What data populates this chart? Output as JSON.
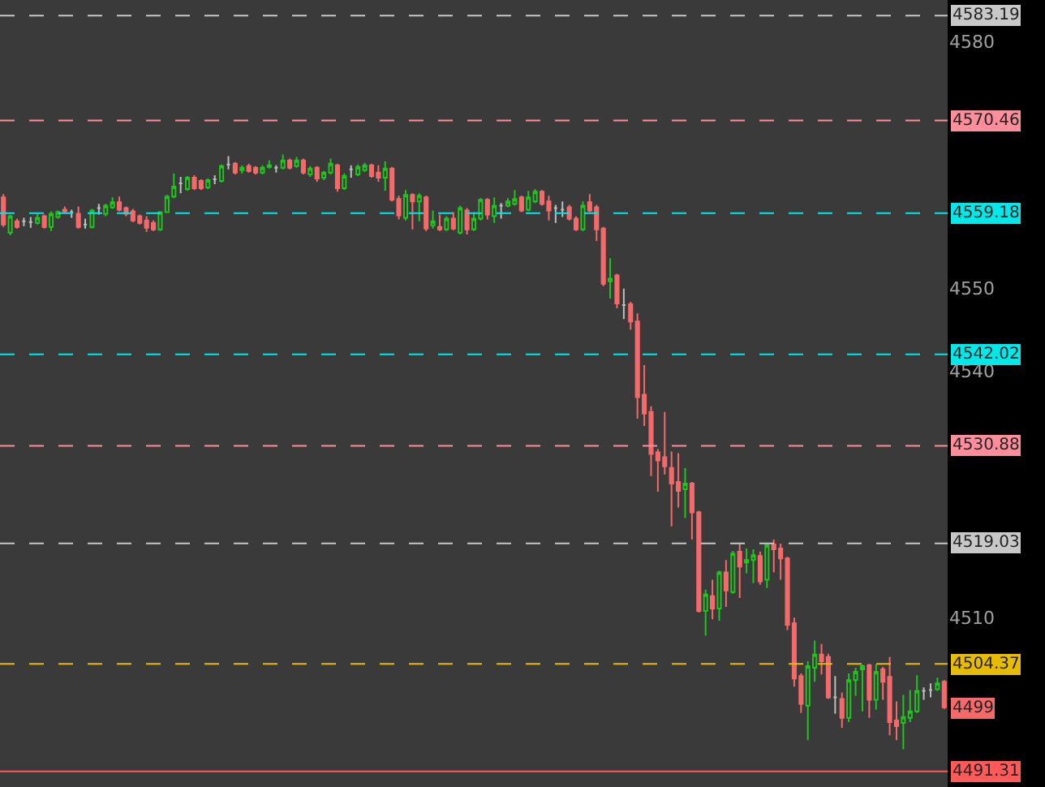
{
  "chart_data": {
    "type": "candlestick",
    "categories": [
      null,
      null,
      null,
      null,
      null,
      null,
      null,
      null,
      null,
      null,
      null,
      null,
      null,
      null,
      null,
      null,
      null,
      null,
      null,
      null,
      null,
      null,
      null,
      null,
      null,
      null,
      null,
      null,
      null,
      null,
      null,
      null,
      null,
      null,
      null,
      null,
      null,
      null,
      null,
      null,
      null,
      null,
      null,
      null,
      null,
      null,
      null,
      null,
      null,
      null,
      null,
      null,
      null,
      null,
      null,
      null,
      null,
      null,
      null,
      null,
      null,
      null,
      null,
      null,
      null,
      null,
      null,
      null,
      null,
      null,
      null,
      null,
      null,
      null,
      null,
      null,
      null,
      null,
      null,
      null,
      null,
      null,
      null,
      null,
      null,
      null,
      null,
      null,
      null,
      null,
      null,
      null,
      null,
      null,
      null,
      null,
      null,
      null,
      null,
      null,
      null,
      null,
      null,
      null,
      null,
      null,
      null,
      null,
      null,
      null,
      null,
      null,
      null,
      null,
      null,
      null,
      null,
      null,
      null,
      null,
      null,
      null,
      null,
      null,
      null,
      null,
      null,
      null,
      null,
      null,
      null,
      null,
      null,
      null,
      null,
      null,
      null,
      null,
      null
    ],
    "ohlc": [
      [
        4561.1,
        4561.5,
        4557.5,
        4557.8
      ],
      [
        4556.8,
        4559.0,
        4556.5,
        4558.8
      ],
      [
        4558.2,
        4558.5,
        4557.3,
        4557.5
      ],
      [
        4558.2,
        4558.6,
        4557.6,
        4558.2
      ],
      [
        4558.1,
        4558.7,
        4557.4,
        4558.1
      ],
      [
        4558.0,
        4559.2,
        4557.8,
        4558.6
      ],
      [
        4558.8,
        4559.0,
        4557.3,
        4557.5
      ],
      [
        4557.5,
        4559.4,
        4557.0,
        4559.1
      ],
      [
        4558.7,
        4559.5,
        4558.5,
        4559.3
      ],
      [
        4559.6,
        4560.0,
        4559.2,
        4559.4
      ],
      [
        4559.3,
        4559.6,
        4558.6,
        4559.3
      ],
      [
        4559.1,
        4560.0,
        4557.3,
        4557.5
      ],
      [
        4557.8,
        4558.5,
        4557.3,
        4557.8
      ],
      [
        4557.5,
        4559.7,
        4557.3,
        4559.5
      ],
      [
        4559.8,
        4560.3,
        4559.0,
        4559.8
      ],
      [
        4559.1,
        4560.3,
        4558.8,
        4560.1
      ],
      [
        4559.9,
        4561.1,
        4559.7,
        4560.5
      ],
      [
        4560.5,
        4561.2,
        4559.4,
        4559.6
      ],
      [
        4559.8,
        4560.0,
        4558.8,
        4559.1
      ],
      [
        4559.4,
        4559.7,
        4558.1,
        4558.3
      ],
      [
        4558.8,
        4559.0,
        4557.8,
        4558.0
      ],
      [
        4558.3,
        4558.8,
        4556.9,
        4557.4
      ],
      [
        4558.0,
        4558.3,
        4557.0,
        4557.2
      ],
      [
        4557.2,
        4559.4,
        4557.0,
        4559.3
      ],
      [
        4559.3,
        4561.4,
        4559.2,
        4561.2
      ],
      [
        4561.2,
        4564.0,
        4561.0,
        4562.4
      ],
      [
        4562.8,
        4563.6,
        4561.6,
        4562.8
      ],
      [
        4562.1,
        4563.7,
        4561.9,
        4563.5
      ],
      [
        4563.5,
        4563.8,
        4562.0,
        4562.2
      ],
      [
        4563.1,
        4563.3,
        4562.0,
        4562.2
      ],
      [
        4562.3,
        4563.4,
        4562.1,
        4563.2
      ],
      [
        4563.3,
        4563.8,
        4562.7,
        4563.3
      ],
      [
        4563.1,
        4565.1,
        4562.9,
        4564.9
      ],
      [
        4565.1,
        4566.1,
        4564.5,
        4565.1
      ],
      [
        4565.2,
        4565.4,
        4563.9,
        4564.1
      ],
      [
        4564.4,
        4565.0,
        4564.0,
        4564.7
      ],
      [
        4564.9,
        4565.2,
        4564.1,
        4564.3
      ],
      [
        4564.7,
        4564.9,
        4563.9,
        4564.1
      ],
      [
        4564.1,
        4565.0,
        4563.9,
        4564.7
      ],
      [
        4564.8,
        4565.6,
        4564.6,
        4565.0
      ],
      [
        4564.7,
        4565.0,
        4564.1,
        4564.7
      ],
      [
        4564.7,
        4566.3,
        4564.5,
        4565.6
      ],
      [
        4565.6,
        4565.8,
        4564.5,
        4564.7
      ],
      [
        4564.9,
        4566.0,
        4564.7,
        4565.6
      ],
      [
        4565.6,
        4565.8,
        4563.9,
        4564.1
      ],
      [
        4563.9,
        4564.9,
        4563.6,
        4564.6
      ],
      [
        4564.7,
        4564.9,
        4563.0,
        4563.4
      ],
      [
        4563.5,
        4564.3,
        4563.2,
        4564.1
      ],
      [
        4564.1,
        4565.8,
        4563.9,
        4565.2
      ],
      [
        4565.0,
        4565.2,
        4561.8,
        4562.2
      ],
      [
        4562.2,
        4564.0,
        4562.0,
        4563.7
      ],
      [
        4564.5,
        4565.0,
        4563.5,
        4564.5
      ],
      [
        4563.9,
        4565.1,
        4563.7,
        4564.8
      ],
      [
        4564.4,
        4565.3,
        4564.2,
        4565.0
      ],
      [
        4565.0,
        4565.2,
        4563.5,
        4563.7
      ],
      [
        4564.1,
        4565.0,
        4563.0,
        4563.5
      ],
      [
        4563.5,
        4565.5,
        4561.9,
        4564.6
      ],
      [
        4564.6,
        4564.8,
        4560.6,
        4560.8
      ],
      [
        4560.9,
        4561.3,
        4558.4,
        4558.9
      ],
      [
        4558.6,
        4562.0,
        4558.3,
        4561.4
      ],
      [
        4561.4,
        4561.6,
        4557.2,
        4560.6
      ],
      [
        4560.6,
        4561.6,
        4558.2,
        4561.3
      ],
      [
        4561.1,
        4561.3,
        4557.0,
        4557.3
      ],
      [
        4557.7,
        4559.5,
        4557.3,
        4558.2
      ],
      [
        4557.5,
        4559.0,
        4557.0,
        4557.2
      ],
      [
        4557.2,
        4558.8,
        4557.0,
        4558.5
      ],
      [
        4558.5,
        4559.3,
        4557.1,
        4557.3
      ],
      [
        4556.8,
        4560.1,
        4556.6,
        4559.8
      ],
      [
        4559.5,
        4559.8,
        4556.6,
        4557.2
      ],
      [
        4557.2,
        4559.3,
        4557.0,
        4558.5
      ],
      [
        4558.5,
        4561.0,
        4558.3,
        4560.8
      ],
      [
        4560.8,
        4561.0,
        4558.4,
        4559.0
      ],
      [
        4558.8,
        4561.1,
        4558.0,
        4560.1
      ],
      [
        4560.1,
        4560.4,
        4558.5,
        4560.1
      ],
      [
        4560.1,
        4561.0,
        4559.9,
        4560.6
      ],
      [
        4560.3,
        4562.0,
        4560.1,
        4560.9
      ],
      [
        4561.1,
        4561.3,
        4559.3,
        4559.5
      ],
      [
        4559.6,
        4561.9,
        4559.4,
        4561.1
      ],
      [
        4560.6,
        4562.1,
        4560.4,
        4561.8
      ],
      [
        4561.8,
        4562.0,
        4560.1,
        4560.3
      ],
      [
        4560.6,
        4561.3,
        4558.3,
        4559.5
      ],
      [
        4559.8,
        4560.2,
        4558.0,
        4559.8
      ],
      [
        4559.6,
        4560.6,
        4558.7,
        4559.6
      ],
      [
        4559.9,
        4560.2,
        4558.3,
        4558.5
      ],
      [
        4558.5,
        4558.8,
        4557.0,
        4557.2
      ],
      [
        4557.2,
        4560.6,
        4557.0,
        4560.1
      ],
      [
        4560.5,
        4561.5,
        4559.3,
        4559.5
      ],
      [
        4559.9,
        4560.2,
        4555.8,
        4557.2
      ],
      [
        4557.3,
        4557.5,
        4550.3,
        4550.6
      ],
      [
        4550.9,
        4553.7,
        4548.8,
        4551.2
      ],
      [
        4551.6,
        4551.8,
        4547.6,
        4548.2
      ],
      [
        4548.0,
        4550.0,
        4546.3,
        4548.0
      ],
      [
        4548.1,
        4548.4,
        4545.0,
        4546.0
      ],
      [
        4546.0,
        4547.0,
        4534.2,
        4536.8
      ],
      [
        4537.1,
        4540.7,
        4533.3,
        4534.8
      ],
      [
        4535.0,
        4535.7,
        4527.2,
        4529.9
      ],
      [
        4530.1,
        4530.5,
        4525.3,
        4529.1
      ],
      [
        4529.5,
        4535.0,
        4527.4,
        4528.4
      ],
      [
        4528.2,
        4530.2,
        4521.1,
        4526.3
      ],
      [
        4526.5,
        4530.0,
        4523.4,
        4525.4
      ],
      [
        4525.6,
        4528.2,
        4522.1,
        4526.3
      ],
      [
        4526.3,
        4526.5,
        4519.5,
        4522.8
      ],
      [
        4522.8,
        4523.0,
        4510.6,
        4510.8
      ],
      [
        4510.8,
        4513.4,
        4507.8,
        4512.8
      ],
      [
        4512.6,
        4514.6,
        4509.8,
        4511.1
      ],
      [
        4511.1,
        4515.7,
        4509.6,
        4515.5
      ],
      [
        4515.5,
        4517.0,
        4511.3,
        4513.3
      ],
      [
        4513.1,
        4518.1,
        4512.9,
        4517.8
      ],
      [
        4518.0,
        4519.0,
        4512.4,
        4516.2
      ],
      [
        4516.7,
        4518.4,
        4515.4,
        4517.0
      ],
      [
        4517.0,
        4518.3,
        4514.2,
        4517.6
      ],
      [
        4517.5,
        4518.0,
        4514.0,
        4514.4
      ],
      [
        4514.6,
        4519.0,
        4513.6,
        4518.8
      ],
      [
        4518.9,
        4519.5,
        4515.5,
        4518.3
      ],
      [
        4518.4,
        4519.0,
        4514.6,
        4517.2
      ],
      [
        4517.2,
        4517.4,
        4508.5,
        4509.1
      ],
      [
        4509.3,
        4510.0,
        4501.6,
        4502.6
      ],
      [
        4502.9,
        4503.2,
        4498.4,
        4499.5
      ],
      [
        4499.3,
        4504.7,
        4495.1,
        4504.1
      ],
      [
        4503.9,
        4507.2,
        4502.2,
        4505.5
      ],
      [
        4505.5,
        4506.8,
        4503.1,
        4504.7
      ],
      [
        4505.2,
        4505.6,
        4500.1,
        4500.3
      ],
      [
        4500.3,
        4502.9,
        4498.3,
        4500.3
      ],
      [
        4500.1,
        4500.9,
        4496.6,
        4497.8
      ],
      [
        4497.8,
        4503.2,
        4497.3,
        4502.4
      ],
      [
        4502.4,
        4503.9,
        4500.5,
        4503.4
      ],
      [
        4503.7,
        4504.3,
        4498.6,
        4504.1
      ],
      [
        4504.2,
        4504.4,
        4497.8,
        4500.0
      ],
      [
        4500.0,
        4504.3,
        4498.8,
        4503.4
      ],
      [
        4503.7,
        4504.0,
        4500.0,
        4502.2
      ],
      [
        4502.8,
        4505.2,
        4495.7,
        4497.3
      ],
      [
        4497.5,
        4499.8,
        4495.1,
        4496.8
      ],
      [
        4497.2,
        4500.6,
        4494.0,
        4497.9
      ],
      [
        4497.8,
        4501.2,
        4497.3,
        4498.6
      ],
      [
        4498.6,
        4503.0,
        4498.4,
        4501.1
      ],
      [
        4501.1,
        4501.5,
        4500.0,
        4501.1
      ],
      [
        4501.2,
        4502.0,
        4500.3,
        4501.2
      ],
      [
        4501.3,
        4502.7,
        4501.1,
        4502.0
      ],
      [
        4502.2,
        4502.4,
        4498.9,
        4499.1
      ]
    ],
    "colors": [
      "#f46a6a",
      "#1fc41f",
      "#f46a6a",
      "#bdbdbd",
      "#bdbdbd",
      "#1fc41f",
      "#f46a6a",
      "#1fc41f",
      "#1fc41f",
      "#f46a6a",
      "#bdbdbd",
      "#f46a6a",
      "#bdbdbd",
      "#1fc41f",
      "#bdbdbd",
      "#1fc41f",
      "#1fc41f",
      "#f46a6a",
      "#f46a6a",
      "#f46a6a",
      "#f46a6a",
      "#f46a6a",
      "#f46a6a",
      "#1fc41f",
      "#1fc41f",
      "#1fc41f",
      "#bdbdbd",
      "#1fc41f",
      "#f46a6a",
      "#f46a6a",
      "#1fc41f",
      "#bdbdbd",
      "#1fc41f",
      "#bdbdbd",
      "#f46a6a",
      "#1fc41f",
      "#f46a6a",
      "#f46a6a",
      "#1fc41f",
      "#1fc41f",
      "#bdbdbd",
      "#1fc41f",
      "#f46a6a",
      "#1fc41f",
      "#f46a6a",
      "#1fc41f",
      "#f46a6a",
      "#1fc41f",
      "#1fc41f",
      "#f46a6a",
      "#1fc41f",
      "#bdbdbd",
      "#1fc41f",
      "#1fc41f",
      "#f46a6a",
      "#f46a6a",
      "#1fc41f",
      "#f46a6a",
      "#f46a6a",
      "#1fc41f",
      "#f46a6a",
      "#1fc41f",
      "#f46a6a",
      "#1fc41f",
      "#f46a6a",
      "#1fc41f",
      "#f46a6a",
      "#1fc41f",
      "#f46a6a",
      "#1fc41f",
      "#1fc41f",
      "#f46a6a",
      "#1fc41f",
      "#bdbdbd",
      "#1fc41f",
      "#1fc41f",
      "#f46a6a",
      "#1fc41f",
      "#1fc41f",
      "#f46a6a",
      "#f46a6a",
      "#bdbdbd",
      "#bdbdbd",
      "#f46a6a",
      "#f46a6a",
      "#1fc41f",
      "#f46a6a",
      "#f46a6a",
      "#f46a6a",
      "#1fc41f",
      "#f46a6a",
      "#bdbdbd",
      "#f46a6a",
      "#f46a6a",
      "#f46a6a",
      "#f46a6a",
      "#f46a6a",
      "#f46a6a",
      "#f46a6a",
      "#f46a6a",
      "#1fc41f",
      "#f46a6a",
      "#f46a6a",
      "#1fc41f",
      "#f46a6a",
      "#1fc41f",
      "#f46a6a",
      "#1fc41f",
      "#f46a6a",
      "#1fc41f",
      "#1fc41f",
      "#f46a6a",
      "#1fc41f",
      "#f46a6a",
      "#f46a6a",
      "#f46a6a",
      "#f46a6a",
      "#f46a6a",
      "#1fc41f",
      "#1fc41f",
      "#f46a6a",
      "#f46a6a",
      "#bdbdbd",
      "#f46a6a",
      "#1fc41f",
      "#1fc41f",
      "#1fc41f",
      "#f46a6a",
      "#1fc41f",
      "#f46a6a",
      "#f46a6a",
      "#f46a6a",
      "#1fc41f",
      "#1fc41f",
      "#1fc41f",
      "#bdbdbd",
      "#bdbdbd",
      "#1fc41f",
      "#f46a6a"
    ],
    "ylim": [
      4489.4,
      4585.1
    ],
    "yticks": [
      4580,
      4550,
      4540,
      4510
    ],
    "tick_labels": "y",
    "ref_lines": [
      {
        "axis": "y",
        "value": 4583.19,
        "label": "4583.19",
        "color": "#c8c8c8",
        "line_style": "dashed"
      },
      {
        "axis": "y",
        "value": 4570.46,
        "label": "4570.46",
        "color": "#ff8e9c",
        "line_style": "dashed"
      },
      {
        "axis": "y",
        "value": 4559.18,
        "label": "4559.18",
        "color": "#00e8e8",
        "line_style": "dashed"
      },
      {
        "axis": "y",
        "value": 4542.02,
        "label": "4542.02",
        "color": "#00e8e8",
        "line_style": "dashed"
      },
      {
        "axis": "y",
        "value": 4530.88,
        "label": "4530.88",
        "color": "#ff8e9c",
        "line_style": "dashed"
      },
      {
        "axis": "y",
        "value": 4519.03,
        "label": "4519.03",
        "color": "#c8c8c8",
        "line_style": "dashed"
      },
      {
        "axis": "y",
        "value": 4504.37,
        "label": "4504.37",
        "color": "#e6bb00",
        "line_style": "dashed"
      },
      {
        "axis": "y",
        "value": 4491.31,
        "label": "4491.31",
        "color": "#ff5a5a",
        "line_style": "solid"
      }
    ],
    "annotations": [
      {
        "text": "4499",
        "y": 4499
      }
    ]
  }
}
